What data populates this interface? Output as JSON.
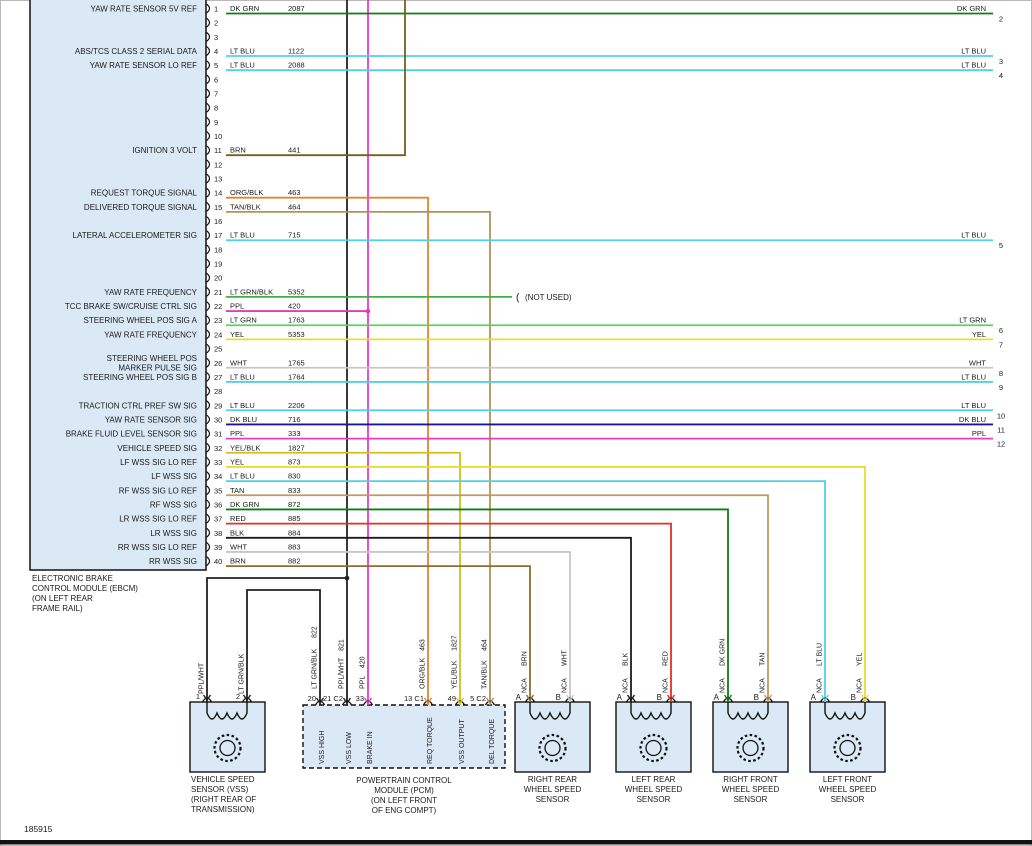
{
  "page": {
    "figure_number": "185915",
    "background": "#ffffff",
    "module_box_fill": "#dbe9f6",
    "line_color": "#1a1a1a"
  },
  "ebcm": {
    "name_lines": [
      "ELECTRONIC BRAKE",
      "CONTROL MODULE (EBCM)",
      "(ON LEFT REAR",
      "FRAME RAIL)"
    ],
    "pins": [
      {
        "n": "1",
        "label": "YAW RATE SENSOR 5V REF",
        "color": "DK GRN",
        "circuit": "2087",
        "route": "right",
        "right_label": "DK GRN",
        "right_num": "2",
        "draw": "#0e7d12"
      },
      {
        "n": "2"
      },
      {
        "n": "3"
      },
      {
        "n": "4",
        "label": "ABS/TCS CLASS 2 SERIAL DATA",
        "color": "LT BLU",
        "circuit": "1122",
        "route": "right",
        "right_label": "LT BLU",
        "right_num": "3",
        "draw": "#4fd2e8"
      },
      {
        "n": "5",
        "label": "YAW RATE SENSOR LO REF",
        "color": "LT BLU",
        "circuit": "2088",
        "route": "right",
        "right_label": "LT BLU",
        "right_num": "4",
        "draw": "#4fd2e8"
      },
      {
        "n": "6"
      },
      {
        "n": "7"
      },
      {
        "n": "8"
      },
      {
        "n": "9"
      },
      {
        "n": "10"
      },
      {
        "n": "11",
        "label": "IGNITION 3 VOLT",
        "color": "BRN",
        "circuit": "441",
        "route": "up",
        "draw": "#72601c"
      },
      {
        "n": "12"
      },
      {
        "n": "13"
      },
      {
        "n": "14",
        "label": "REQUEST TORQUE SIGNAL",
        "color": "ORG/BLK",
        "circuit": "463",
        "route": "down",
        "draw": "#e1862d"
      },
      {
        "n": "15",
        "label": "DELIVERED TORQUE SIGNAL",
        "color": "TAN/BLK",
        "circuit": "464",
        "route": "down",
        "draw": "#b3925e"
      },
      {
        "n": "16"
      },
      {
        "n": "17",
        "label": "LATERAL ACCELEROMETER SIG",
        "color": "LT BLU",
        "circuit": "715",
        "route": "right",
        "right_label": "LT BLU",
        "right_num": "5",
        "draw": "#4fd2e8"
      },
      {
        "n": "18"
      },
      {
        "n": "19"
      },
      {
        "n": "20"
      },
      {
        "n": "21",
        "label": "YAW RATE FREQUENCY",
        "color": "LT GRN/BLK",
        "circuit": "5352",
        "route": "notused",
        "note": "(NOT USED)",
        "draw": "#3fb044"
      },
      {
        "n": "22",
        "label": "TCC BRAKE SW/CRUISE CTRL SIG",
        "color": "PPL",
        "circuit": "420",
        "route": "join",
        "draw": "#e23cc6"
      },
      {
        "n": "23",
        "label": "STEERING WHEEL POS SIG A",
        "color": "LT GRN",
        "circuit": "1763",
        "route": "right",
        "right_label": "LT GRN",
        "right_num": "6",
        "draw": "#5ad35a"
      },
      {
        "n": "24",
        "label": "YAW RATE FREQUENCY",
        "color": "YEL",
        "circuit": "5353",
        "route": "right",
        "right_label": "YEL",
        "right_num": "7",
        "draw": "#e9dc33"
      },
      {
        "n": "25"
      },
      {
        "n": "26",
        "label": "STEERING WHEEL POS\nMARKER PULSE SIG",
        "color": "WHT",
        "circuit": "1765",
        "route": "right",
        "right_label": "WHT",
        "right_num": "8",
        "draw": "#c7c7c7"
      },
      {
        "n": "27",
        "label": "STEERING WHEEL POS SIG B",
        "color": "LT BLU",
        "circuit": "1764",
        "route": "right",
        "right_label": "LT BLU",
        "right_num": "9",
        "draw": "#4fd2e8"
      },
      {
        "n": "28"
      },
      {
        "n": "29",
        "label": "TRACTION CTRL PREF SW SIG",
        "color": "LT BLU",
        "circuit": "2206",
        "route": "right",
        "right_label": "LT BLU",
        "right_num": "10",
        "draw": "#4fd2e8"
      },
      {
        "n": "30",
        "label": "YAW RATE SENSOR SIG",
        "color": "DK BLU",
        "circuit": "716",
        "route": "right",
        "right_label": "DK BLU",
        "right_num": "11",
        "draw": "#18188f"
      },
      {
        "n": "31",
        "label": "BRAKE FLUID LEVEL SENSOR SIG",
        "color": "PPL",
        "circuit": "333",
        "route": "right",
        "right_label": "PPL",
        "right_num": "12",
        "draw": "#e23cc6"
      },
      {
        "n": "32",
        "label": "VEHICLE SPEED SIG",
        "color": "YEL/BLK",
        "circuit": "1827",
        "route": "down",
        "draw": "#cfc01d"
      },
      {
        "n": "33",
        "label": "LF WSS SIG LO REF",
        "color": "YEL",
        "circuit": "873",
        "route": "down",
        "draw": "#e9dc33"
      },
      {
        "n": "34",
        "label": "LF WSS SIG",
        "color": "LT BLU",
        "circuit": "830",
        "route": "down",
        "draw": "#4fd2e8"
      },
      {
        "n": "35",
        "label": "RF WSS SIG LO REF",
        "color": "TAN",
        "circuit": "833",
        "route": "down",
        "draw": "#bf995f"
      },
      {
        "n": "36",
        "label": "RF WSS SIG",
        "color": "DK GRN",
        "circuit": "872",
        "route": "down",
        "draw": "#0e7d12"
      },
      {
        "n": "37",
        "label": "LR WSS SIG LO REF",
        "color": "RED",
        "circuit": "885",
        "route": "down",
        "draw": "#e1302a"
      },
      {
        "n": "38",
        "label": "LR WSS SIG",
        "color": "BLK",
        "circuit": "884",
        "route": "down",
        "draw": "#1c1c1c"
      },
      {
        "n": "39",
        "label": "RR WSS SIG LO REF",
        "color": "WHT",
        "circuit": "883",
        "route": "down",
        "draw": "#c7c7c7"
      },
      {
        "n": "40",
        "label": "RR WSS SIG",
        "color": "BRN",
        "circuit": "882",
        "route": "down",
        "draw": "#8a6e2f"
      }
    ]
  },
  "pcm": {
    "name_lines": [
      "POWERTRAIN CONTROL",
      "MODULE (PCM)",
      "(ON LEFT FRONT",
      "OF ENG COMPT)"
    ],
    "pins": [
      {
        "num": "20",
        "signal": "VSS HIGH",
        "color": "LT GRN/BLK",
        "circuit": "822",
        "draw": "#222222"
      },
      {
        "num": "21 C2",
        "signal": "VSS LOW",
        "color": "PPL/WHT",
        "circuit": "821",
        "draw": "#222222"
      },
      {
        "num": "33",
        "signal": "BRAKE IN",
        "color": "PPL",
        "circuit": "420",
        "draw": "#e23cc6"
      },
      {
        "num": "13 C1",
        "signal": "REQ TORQUE",
        "color": "ORG/BLK",
        "circuit": "463",
        "draw": "#e1862d"
      },
      {
        "num": "49",
        "signal": "VSS OUTPUT",
        "color": "YEL/BLK",
        "circuit": "1827",
        "draw": "#cfc01d"
      },
      {
        "num": "5 C2",
        "signal": "DEL TORQUE",
        "color": "TAN/BLK",
        "circuit": "464",
        "draw": "#b3925e"
      }
    ]
  },
  "vss": {
    "name_lines": [
      "VEHICLE SPEED",
      "SENSOR (VSS)",
      "(RIGHT REAR OF",
      "TRANSMISSION)"
    ],
    "pins": [
      {
        "num": "1",
        "color": "PPL/WHT",
        "draw": "#222222"
      },
      {
        "num": "2",
        "color": "LT GRN/BLK",
        "draw": "#222222"
      }
    ]
  },
  "wheel_sensors": [
    {
      "name_lines": [
        "RIGHT REAR",
        "WHEEL SPEED",
        "SENSOR"
      ],
      "pins": [
        {
          "letter": "A",
          "tag": "NCA",
          "color": "BRN",
          "draw": "#8a6e2f"
        },
        {
          "letter": "B",
          "tag": "NCA",
          "color": "WHT",
          "draw": "#c7c7c7"
        }
      ]
    },
    {
      "name_lines": [
        "LEFT REAR",
        "WHEEL SPEED",
        "SENSOR"
      ],
      "pins": [
        {
          "letter": "A",
          "tag": "NCA",
          "color": "BLK",
          "draw": "#1c1c1c"
        },
        {
          "letter": "B",
          "tag": "NCA",
          "color": "RED",
          "draw": "#e1302a"
        }
      ]
    },
    {
      "name_lines": [
        "RIGHT FRONT",
        "WHEEL SPEED",
        "SENSOR"
      ],
      "pins": [
        {
          "letter": "A",
          "tag": "NCA",
          "color": "DK GRN",
          "draw": "#0e7d12"
        },
        {
          "letter": "B",
          "tag": "NCA",
          "color": "TAN",
          "draw": "#bf995f"
        }
      ]
    },
    {
      "name_lines": [
        "LEFT FRONT",
        "WHEEL SPEED",
        "SENSOR"
      ],
      "pins": [
        {
          "letter": "A",
          "tag": "NCA",
          "color": "LT BLU",
          "draw": "#4fd2e8"
        },
        {
          "letter": "B",
          "tag": "NCA",
          "color": "YEL",
          "draw": "#e9dc33"
        }
      ]
    }
  ]
}
